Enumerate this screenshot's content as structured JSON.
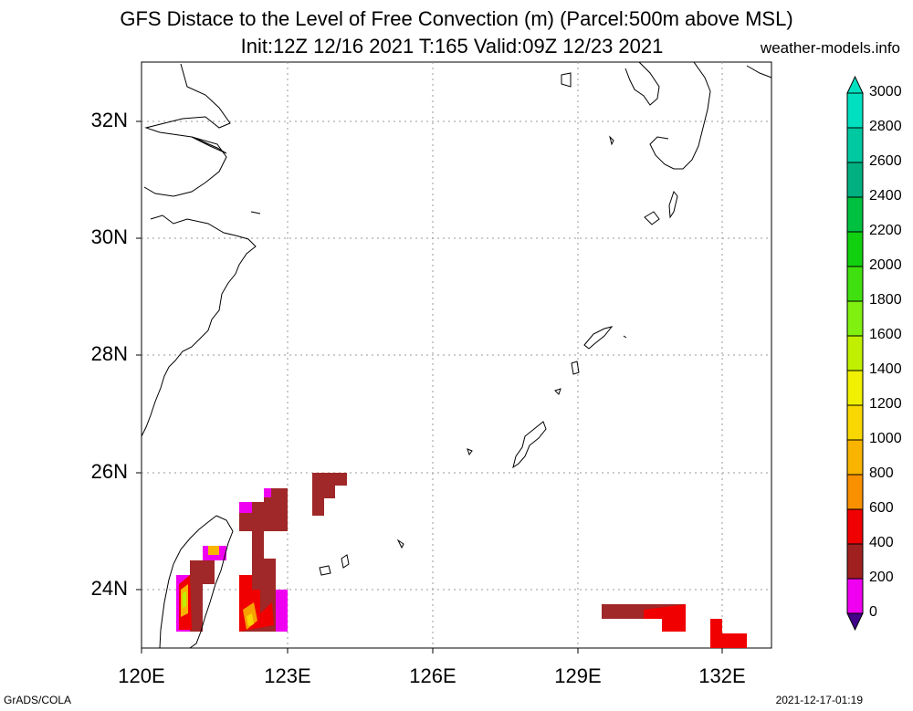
{
  "header": {
    "title_line1": "GFS Distace to the Level of Free Convection (m) (Parcel:500m above MSL)",
    "title_line2": "Init:12Z 12/16 2021 T:165 Valid:09Z 12/23 2021",
    "site": "weather-models.info"
  },
  "axes": {
    "lon_labels": [
      "120E",
      "123E",
      "126E",
      "129E",
      "132E"
    ],
    "lat_labels": [
      "32N",
      "30N",
      "28N",
      "26N",
      "24N"
    ]
  },
  "colorbar": {
    "labels": [
      "3000",
      "2800",
      "2600",
      "2400",
      "2200",
      "2000",
      "1800",
      "1600",
      "1400",
      "1200",
      "1000",
      "800",
      "600",
      "400",
      "200",
      "0"
    ],
    "colors": [
      "#00e0c0",
      "#00c8a0",
      "#00b080",
      "#00c040",
      "#10d010",
      "#40e010",
      "#80f010",
      "#c0f000",
      "#f0f000",
      "#f8d800",
      "#f8b400",
      "#f89000",
      "#f00000",
      "#a02020",
      "#f000f0",
      "#400088"
    ]
  },
  "footer": {
    "left": "GrADS/COLA",
    "right": "2021-12-17-01:19"
  }
}
